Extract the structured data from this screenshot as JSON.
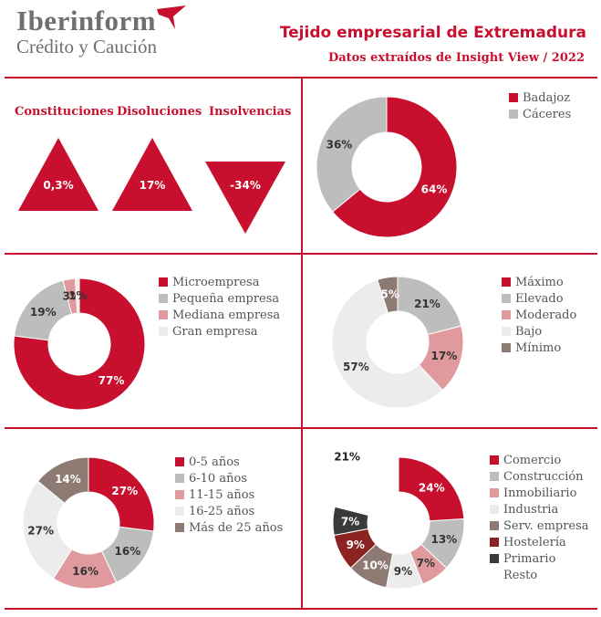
{
  "header": {
    "brand": "Iberinform",
    "brand_sub": "Crédito y Caución",
    "title": "Tejido empresarial de Extremadura",
    "subtitle": "Datos extraídos de Insight View / 2022"
  },
  "colors": {
    "accent": "#c8102e"
  },
  "indicators": [
    {
      "label": "Constituciones",
      "value": "0,3%",
      "direction": "up"
    },
    {
      "label": "Disoluciones",
      "value": "17%",
      "direction": "up"
    },
    {
      "label": "Insolvencias",
      "value": "-34%",
      "direction": "down"
    }
  ],
  "chart_data": [
    {
      "type": "pie",
      "categories": [
        "Badajoz",
        "Cáceres"
      ],
      "values": [
        64,
        36
      ],
      "labels": [
        "64%",
        "36%"
      ],
      "colors": [
        "#c8102e",
        "#bdbdbd"
      ]
    },
    {
      "type": "pie",
      "categories": [
        "Microempresa",
        "Pequeña empresa",
        "Mediana empresa",
        "Gran empresa"
      ],
      "values": [
        77,
        19,
        3,
        1
      ],
      "labels": [
        "77%",
        "19%",
        "3%",
        "1%"
      ],
      "colors": [
        "#c8102e",
        "#bdbdbd",
        "#e09a9e",
        "#ececec"
      ]
    },
    {
      "type": "pie",
      "categories": [
        "Máximo",
        "Elevado",
        "Moderado",
        "Bajo",
        "Mínimo"
      ],
      "values": [
        0,
        21,
        17,
        57,
        5
      ],
      "labels": [
        "",
        "21%",
        "17%",
        "57%",
        "5%"
      ],
      "colors": [
        "#c8102e",
        "#bdbdbd",
        "#e09a9e",
        "#ececec",
        "#8d7a72"
      ]
    },
    {
      "type": "pie",
      "categories": [
        "0-5 años",
        "6-10 años",
        "11-15 años",
        "16-25 años",
        "Más de 25 años"
      ],
      "values": [
        27,
        16,
        16,
        27,
        14
      ],
      "labels": [
        "27%",
        "16%",
        "16%",
        "27%",
        "14%"
      ],
      "colors": [
        "#c8102e",
        "#bdbdbd",
        "#e09a9e",
        "#ececec",
        "#8d7a72"
      ]
    },
    {
      "type": "pie",
      "categories": [
        "Comercio",
        "Construcción",
        "Inmobiliario",
        "Industria",
        "Serv. empresa",
        "Hostelería",
        "Primario",
        "Resto"
      ],
      "values": [
        24,
        13,
        7,
        9,
        10,
        9,
        7,
        21
      ],
      "labels": [
        "24%",
        "13%",
        "7%",
        "9%",
        "10%",
        "9%",
        "7%",
        "21%"
      ],
      "colors": [
        "#c8102e",
        "#bdbdbd",
        "#e09a9e",
        "#ececec",
        "#8d7a72",
        "#8b2323",
        "#3a3a3a",
        "#ffffff"
      ]
    }
  ]
}
